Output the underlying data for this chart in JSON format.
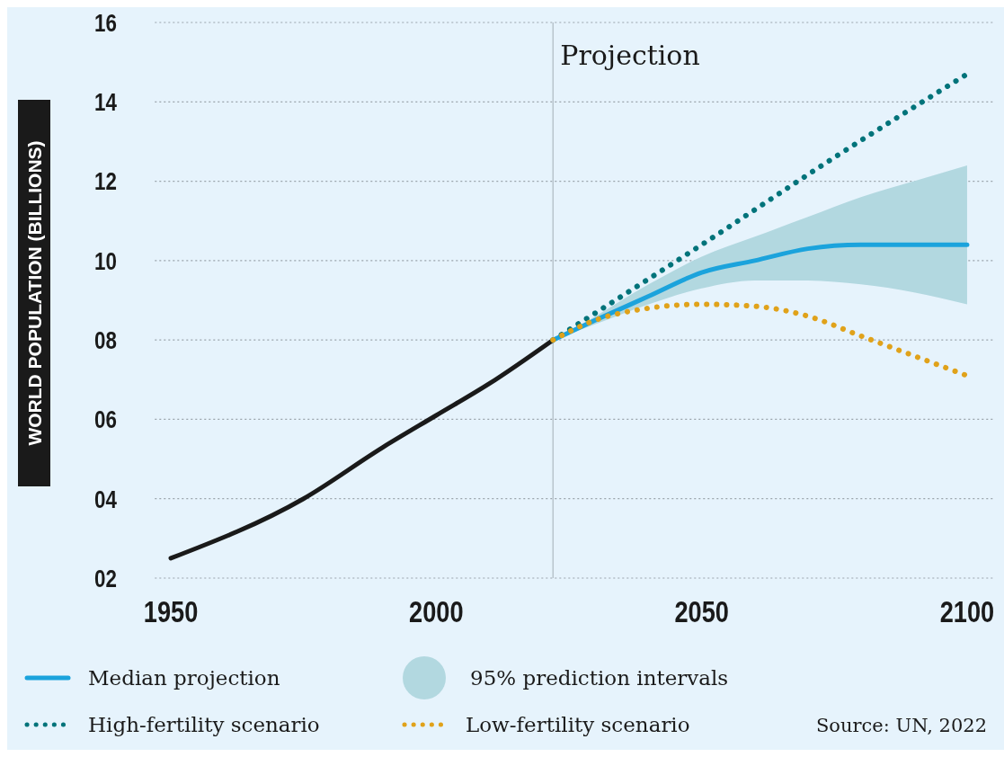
{
  "chart_data": {
    "type": "line",
    "ylabel": "WORLD POPULATION (BILLIONS)",
    "xlim": [
      1947,
      2105
    ],
    "xticks": [
      1950,
      2000,
      2050,
      2100
    ],
    "ylim": [
      2,
      16
    ],
    "yticks": [
      {
        "value": 2,
        "label": "02"
      },
      {
        "value": 4,
        "label": "04"
      },
      {
        "value": 6,
        "label": "06"
      },
      {
        "value": 8,
        "label": "08"
      },
      10,
      12,
      14,
      16
    ],
    "grid": "y",
    "legend": "bottom",
    "ref_lines": [
      {
        "axis": "x",
        "value": 2022,
        "label": "Projection",
        "color": "#b8c4cc"
      }
    ],
    "annotations": [
      "Source: UN, 2022",
      "95% prediction intervals"
    ],
    "series": [
      {
        "color": "#1a1a1a",
        "x": [
          1950,
          1975,
          1990,
          2000,
          2010,
          2022
        ],
        "values": [
          2.5,
          4.0,
          5.3,
          6.1,
          6.9,
          8.0
        ],
        "line_style": "solid"
      },
      {
        "name": "Median projection",
        "color": "#1ba3dc",
        "x": [
          2022,
          2030,
          2040,
          2050,
          2060,
          2070,
          2080,
          2090,
          2100
        ],
        "values": [
          8.0,
          8.5,
          9.1,
          9.7,
          10.0,
          10.3,
          10.4,
          10.4,
          10.4
        ],
        "lower": [
          8.0,
          8.4,
          8.9,
          9.3,
          9.5,
          9.5,
          9.4,
          9.2,
          8.9
        ],
        "upper": [
          8.0,
          8.6,
          9.4,
          10.1,
          10.6,
          11.1,
          11.6,
          12.0,
          12.4
        ],
        "line_style": "solid"
      },
      {
        "name": "High-fertility scenario",
        "color": "#00737a",
        "x": [
          2022,
          2050,
          2075,
          2100
        ],
        "values": [
          8.0,
          10.4,
          12.6,
          14.7
        ],
        "line_style": "dotted"
      },
      {
        "name": "Low-fertility scenario",
        "color": "#e0a21a",
        "x": [
          2022,
          2030,
          2040,
          2050,
          2060,
          2070,
          2080,
          2090,
          2100
        ],
        "values": [
          8.0,
          8.5,
          8.8,
          8.9,
          8.85,
          8.6,
          8.1,
          7.6,
          7.1
        ],
        "line_style": "dotted"
      }
    ]
  }
}
